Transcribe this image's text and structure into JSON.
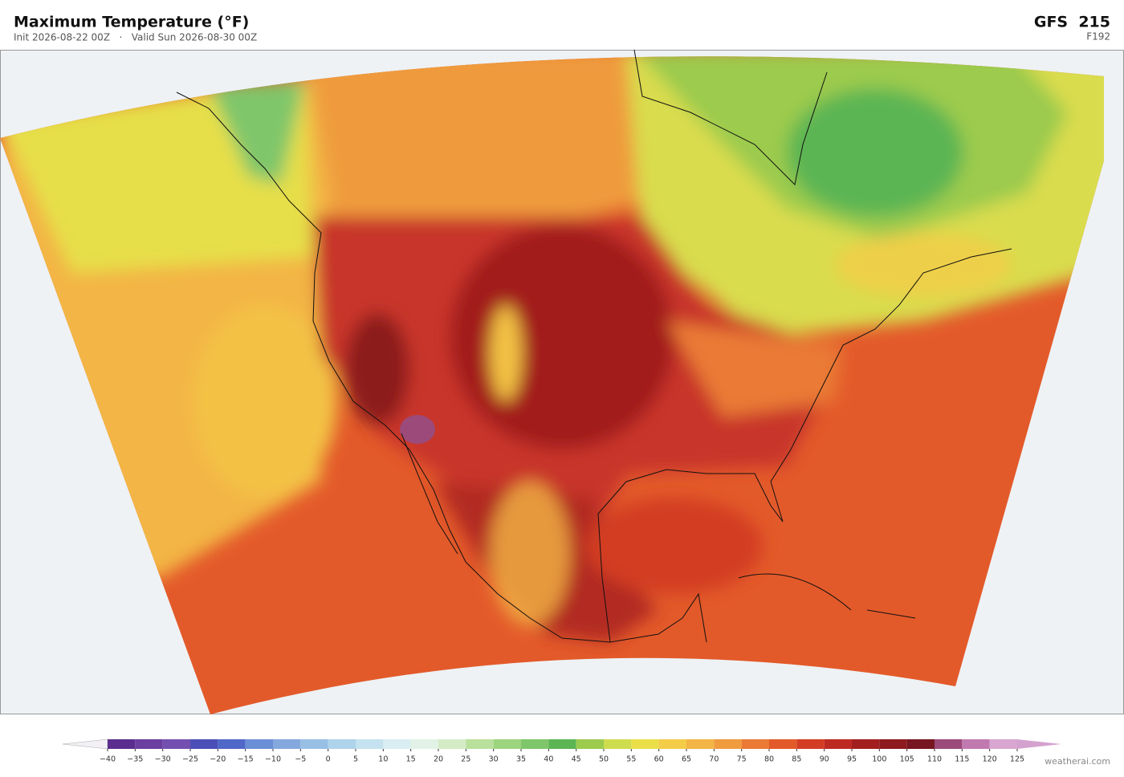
{
  "header": {
    "title": "Maximum Temperature  (°F)",
    "subtitle": "Init 2026-08-22 00Z   ·   Valid Sun 2026-08-30 00Z",
    "model": "GFS  215",
    "forecast_hour": "F192"
  },
  "colorbar": {
    "ticks": [
      {
        "value": -40,
        "label": "−40"
      },
      {
        "value": -35,
        "label": "−35"
      },
      {
        "value": -30,
        "label": "−30"
      },
      {
        "value": -25,
        "label": "−25"
      },
      {
        "value": -20,
        "label": "−20"
      },
      {
        "value": -15,
        "label": "−15"
      },
      {
        "value": -10,
        "label": "−10"
      },
      {
        "value": -5,
        "label": "−5"
      },
      0,
      5,
      10,
      15,
      20,
      25,
      30,
      35,
      40,
      45,
      50,
      55,
      60,
      65,
      70,
      75,
      80,
      85,
      90,
      95,
      100,
      105,
      110,
      115,
      120,
      125
    ],
    "colors": [
      "#5b2d8e",
      "#6b3fa0",
      "#7350b0",
      "#4a4fb8",
      "#5068c8",
      "#6b8fd6",
      "#84a8dd",
      "#98bfe4",
      "#aed3ea",
      "#c4e2ef",
      "#d9eef2",
      "#e3f2e6",
      "#d4ecc6",
      "#b9e09c",
      "#9dd47e",
      "#7fc66a",
      "#5cb553",
      "#9ccb4e",
      "#cfdc4e",
      "#eadf48",
      "#f3cc48",
      "#f3b545",
      "#ef9b3e",
      "#ea7a35",
      "#e35a2a",
      "#d33d24",
      "#bd2a22",
      "#a31f1f",
      "#8c1a1e",
      "#771620",
      "#9b4a7a",
      "#c07ab0",
      "#d8a6d0"
    ],
    "under_color": "#f2f0f5",
    "over_color": "#d4a2cf"
  },
  "footer": {
    "credit": "weatherai.com"
  }
}
